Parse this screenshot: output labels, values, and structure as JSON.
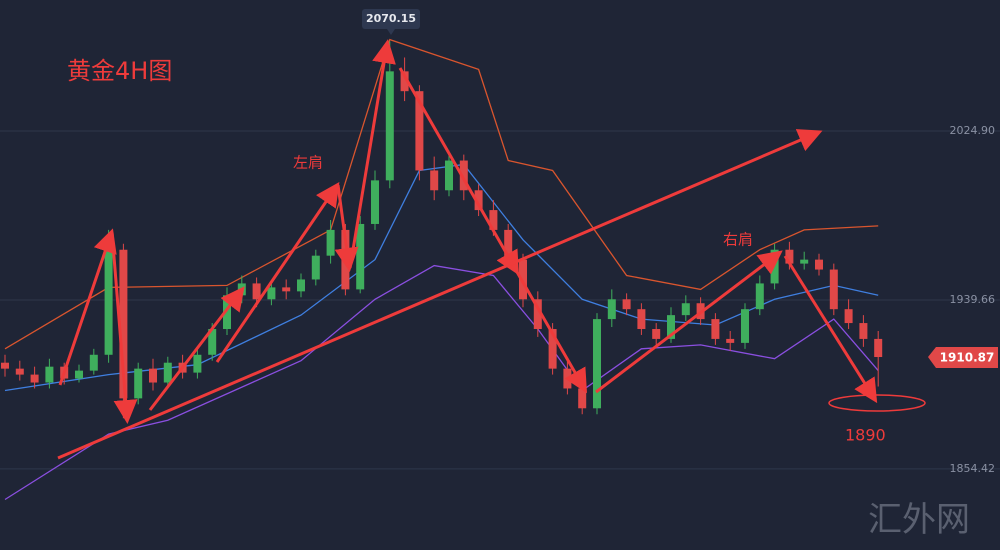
{
  "chart_data": {
    "type": "candlestick",
    "title": "黄金4H图",
    "open": [
      1908,
      1905,
      1902,
      1898,
      1906,
      1900,
      1904,
      1912,
      1965,
      1890,
      1905,
      1898,
      1908,
      1903,
      1912,
      1925,
      1942,
      1948,
      1940,
      1946,
      1944,
      1950,
      1962,
      1975,
      1945,
      1978,
      2000,
      2055,
      2045,
      2005,
      1995,
      2010,
      1995,
      1985,
      1975,
      1960,
      1940,
      1925,
      1905,
      1895,
      1885,
      1930,
      1940,
      1935,
      1925,
      1920,
      1932,
      1938,
      1930,
      1920,
      1918,
      1935,
      1948,
      1965,
      1958,
      1960,
      1955,
      1935,
      1928,
      1920
    ],
    "high": [
      1912,
      1909,
      1906,
      1910,
      1908,
      1907,
      1915,
      1975,
      1968,
      1908,
      1910,
      1911,
      1912,
      1915,
      1928,
      1946,
      1952,
      1951,
      1949,
      1950,
      1953,
      1965,
      1980,
      1978,
      1982,
      2005,
      2070.15,
      2062,
      2048,
      2012,
      2015,
      2013,
      1998,
      1990,
      1978,
      1963,
      1944,
      1928,
      1909,
      1898,
      1933,
      1945,
      1943,
      1938,
      1928,
      1936,
      1942,
      1941,
      1933,
      1924,
      1938,
      1952,
      1968,
      1969,
      1964,
      1963,
      1958,
      1940,
      1932,
      1924
    ],
    "low": [
      1901,
      1899,
      1895,
      1895,
      1897,
      1898,
      1902,
      1908,
      1880,
      1887,
      1894,
      1895,
      1900,
      1900,
      1909,
      1922,
      1938,
      1936,
      1937,
      1940,
      1941,
      1947,
      1958,
      1942,
      1943,
      1975,
      1996,
      2040,
      2000,
      1990,
      1992,
      1990,
      1982,
      1972,
      1957,
      1936,
      1921,
      1902,
      1892,
      1882,
      1882,
      1926,
      1932,
      1922,
      1917,
      1918,
      1929,
      1927,
      1917,
      1914,
      1915,
      1932,
      1945,
      1955,
      1955,
      1952,
      1932,
      1925,
      1916,
      1896
    ],
    "close": [
      1905,
      1902,
      1898,
      1906,
      1900,
      1904,
      1912,
      1965,
      1890,
      1905,
      1898,
      1908,
      1903,
      1912,
      1925,
      1942,
      1948,
      1940,
      1946,
      1944,
      1950,
      1962,
      1975,
      1945,
      1978,
      2000,
      2055,
      2045,
      2005,
      1995,
      2010,
      1995,
      1985,
      1975,
      1960,
      1940,
      1925,
      1905,
      1895,
      1885,
      1930,
      1940,
      1935,
      1925,
      1920,
      1932,
      1938,
      1930,
      1920,
      1918,
      1935,
      1948,
      1965,
      1958,
      1960,
      1955,
      1935,
      1928,
      1920,
      1910.87
    ],
    "bands": [
      {
        "color": "#d9552e",
        "x": [
          0,
          7,
          15,
          22,
          26,
          32,
          34,
          37,
          42,
          47,
          51,
          54,
          59
        ],
        "values": [
          1915,
          1946,
          1947,
          1975,
          2071,
          2056,
          2010,
          2005,
          1952,
          1945,
          1965,
          1975,
          1977
        ]
      },
      {
        "color": "#3f7fe0",
        "x": [
          0,
          7,
          13,
          20,
          25,
          28,
          31,
          35,
          39,
          43,
          48,
          52,
          56,
          59
        ],
        "values": [
          1894,
          1902,
          1907,
          1932,
          1960,
          2005,
          2008,
          1970,
          1940,
          1930,
          1927,
          1940,
          1947,
          1942
        ]
      },
      {
        "color": "#8a4fe0",
        "x": [
          0,
          7,
          11,
          20,
          25,
          29,
          33,
          36,
          39,
          43,
          47,
          52,
          56,
          59
        ],
        "values": [
          1839,
          1872,
          1879,
          1909,
          1940,
          1957,
          1952,
          1925,
          1894,
          1915,
          1917,
          1910,
          1930,
          1904
        ]
      }
    ],
    "up_color": "#3fae5d",
    "down_color": "#e04848",
    "ylim": [
      1813.5,
      2091
    ],
    "yticks": [
      {
        "value": 2024.9,
        "label": "2024.90"
      },
      1939.66,
      1854.42
    ],
    "grid": true,
    "annotations": [
      "左肩",
      "右肩",
      "1890"
    ],
    "watermark": "汇外网"
  }
}
